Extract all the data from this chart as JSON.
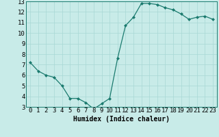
{
  "x": [
    0,
    1,
    2,
    3,
    4,
    5,
    6,
    7,
    8,
    9,
    10,
    11,
    12,
    13,
    14,
    15,
    16,
    17,
    18,
    19,
    20,
    21,
    22,
    23
  ],
  "y": [
    7.2,
    6.4,
    6.0,
    5.8,
    5.0,
    3.8,
    3.8,
    3.4,
    2.8,
    3.3,
    3.8,
    7.6,
    10.7,
    11.5,
    12.8,
    12.8,
    12.7,
    12.4,
    12.2,
    11.8,
    11.3,
    11.5,
    11.6,
    11.3
  ],
  "xlabel": "Humidex (Indice chaleur)",
  "ylim": [
    3,
    13
  ],
  "xlim": [
    -0.5,
    23.5
  ],
  "yticks": [
    3,
    4,
    5,
    6,
    7,
    8,
    9,
    10,
    11,
    12,
    13
  ],
  "xticks": [
    0,
    1,
    2,
    3,
    4,
    5,
    6,
    7,
    8,
    9,
    10,
    11,
    12,
    13,
    14,
    15,
    16,
    17,
    18,
    19,
    20,
    21,
    22,
    23
  ],
  "line_color": "#1a7a6e",
  "marker": "D",
  "marker_size": 2.0,
  "bg_color": "#c8ebe8",
  "grid_color": "#a8d8d4",
  "xlabel_fontsize": 7,
  "tick_fontsize": 6.5,
  "linewidth": 0.9
}
